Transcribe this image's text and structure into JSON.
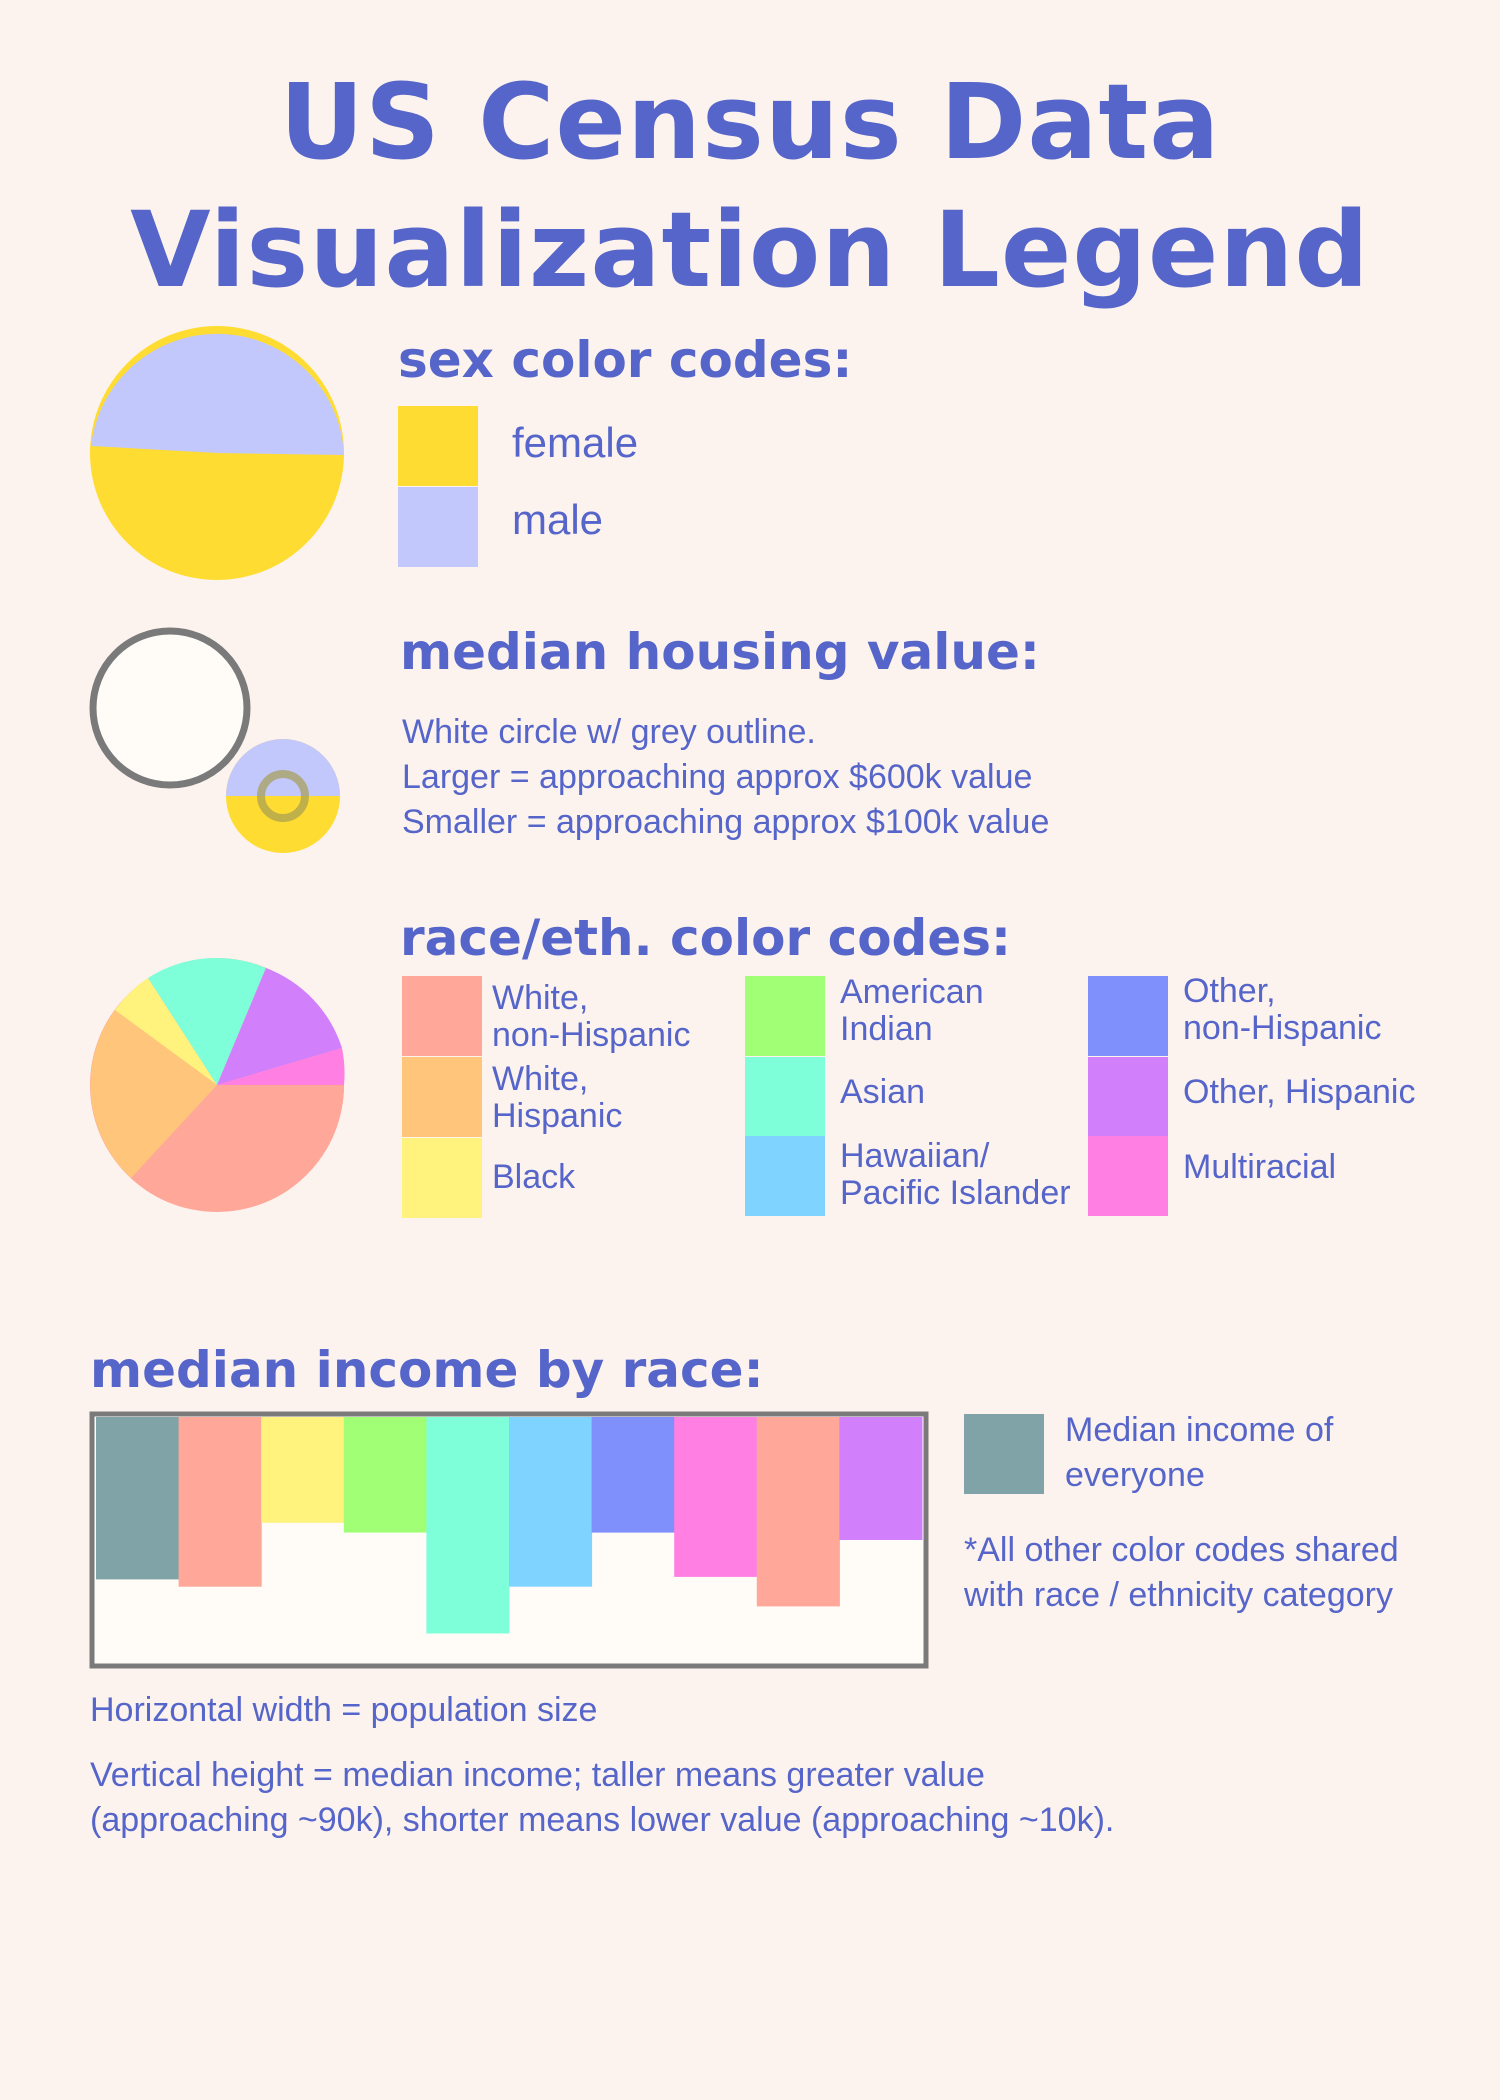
{
  "title_line1": "US Census Data",
  "title_line2": "Visualization Legend",
  "sex": {
    "heading": "sex color codes:",
    "items": [
      {
        "label": "female",
        "color": "#ffdc32"
      },
      {
        "label": "male",
        "color": "#c2c8fb"
      }
    ]
  },
  "housing": {
    "heading": "median housing value:",
    "lines": [
      "White circle w/ grey outline.",
      "Larger = approaching approx $600k value",
      "Smaller = approaching approx $100k value"
    ]
  },
  "race": {
    "heading": "race/eth. color codes:",
    "items": [
      {
        "label": "White,\nnon-Hispanic",
        "color": "#ffa89a"
      },
      {
        "label": "White,\nHispanic",
        "color": "#ffc57a"
      },
      {
        "label": "Black",
        "color": "#fff27d"
      },
      {
        "label": "American\nIndian",
        "color": "#a1ff75"
      },
      {
        "label": "Asian",
        "color": "#7fffd9"
      },
      {
        "label": "Hawaiian/\nPacific Islander",
        "color": "#7fd4ff"
      },
      {
        "label": "Other,\nnon-Hispanic",
        "color": "#7f8ffc"
      },
      {
        "label": "Other, Hispanic",
        "color": "#d27ffc"
      },
      {
        "label": "Multiracial",
        "color": "#ff80e2"
      }
    ]
  },
  "income": {
    "heading": "median income by race:",
    "legend_label": "Median income of\neveryone",
    "legend_color": "#7fa3a6",
    "note": "*All other color codes shared\nwith race / ethnicity category",
    "width_caption": "Horizontal width = population size",
    "height_caption_1": "Vertical height = median income; taller means greater value",
    "height_caption_2": "(approaching ~90k), shorter means lower value (approaching ~10k)."
  },
  "chart_data": {
    "type": "bar",
    "title": "median income by race:",
    "categories": [
      "everyone",
      "White, non-Hispanic",
      "Black",
      "American Indian",
      "Asian",
      "Hawaiian/Pacific Islander",
      "Other, non-Hispanic",
      "Multiracial",
      "White, non-Hispanic",
      "Other, Hispanic"
    ],
    "colors": [
      "#7fa3a6",
      "#ffa89a",
      "#fff27d",
      "#a1ff75",
      "#7fffd9",
      "#7fd4ff",
      "#7f8ffc",
      "#ff80e2",
      "#ffa89a",
      "#d27ffc"
    ],
    "values": [
      66,
      69,
      43,
      47,
      88,
      69,
      47,
      65,
      77,
      50
    ],
    "ylim": [
      0,
      100
    ]
  }
}
